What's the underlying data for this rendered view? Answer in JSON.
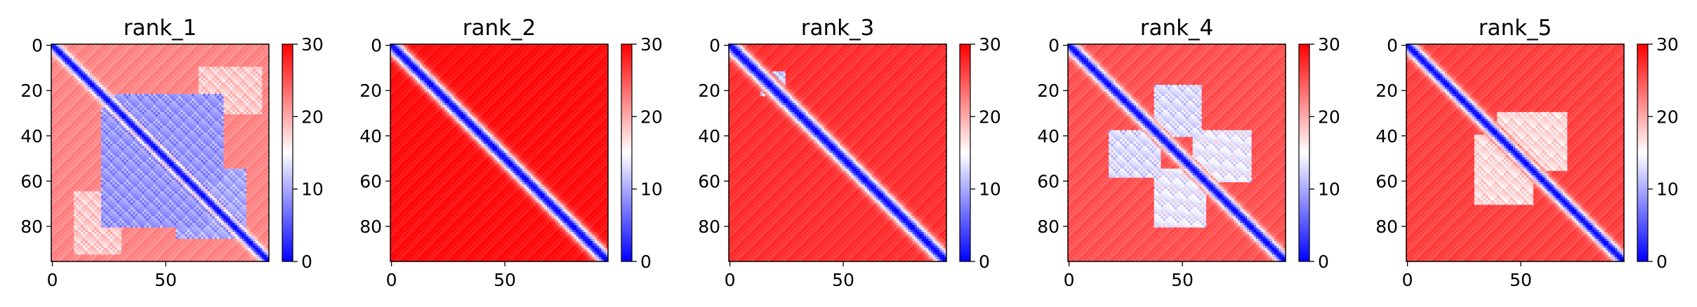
{
  "chart_data": [
    {
      "type": "heatmap",
      "title": "rank_1",
      "xticks": [
        "0",
        "50"
      ],
      "yticks": [
        "0",
        "20",
        "40",
        "60",
        "80"
      ],
      "colorbar_ticks": [
        "0",
        "10",
        "20",
        "30"
      ],
      "n": 96,
      "vmin": 0,
      "vmax": 30,
      "colormap": {
        "low": "#0000ff",
        "mid": "#ffffff",
        "high": "#ff0000"
      },
      "pattern": {
        "diagonal_width": 2.2,
        "far_level": 22,
        "off_diagonal_blocks": [
          {
            "rows": [
              22,
              60
            ],
            "cols": [
              28,
              75
            ],
            "value": 9
          },
          {
            "rows": [
              28,
              80
            ],
            "cols": [
              22,
              68
            ],
            "value": 9
          },
          {
            "rows": [
              55,
              80
            ],
            "cols": [
              60,
              85
            ],
            "value": 10
          },
          {
            "rows": [
              60,
              85
            ],
            "cols": [
              55,
              80
            ],
            "value": 10
          },
          {
            "rows": [
              10,
              30
            ],
            "cols": [
              65,
              92
            ],
            "value": 18
          },
          {
            "rows": [
              65,
              92
            ],
            "cols": [
              10,
              30
            ],
            "value": 18
          }
        ]
      }
    },
    {
      "type": "heatmap",
      "title": "rank_2",
      "xticks": [
        "0",
        "50"
      ],
      "yticks": [
        "0",
        "20",
        "40",
        "60",
        "80"
      ],
      "colorbar_ticks": [
        "0",
        "10",
        "20",
        "30"
      ],
      "n": 96,
      "vmin": 0,
      "vmax": 30,
      "colormap": {
        "low": "#0000ff",
        "mid": "#ffffff",
        "high": "#ff0000"
      },
      "pattern": {
        "diagonal_width": 3.0,
        "far_level": 29,
        "off_diagonal_blocks": []
      }
    },
    {
      "type": "heatmap",
      "title": "rank_3",
      "xticks": [
        "0",
        "50"
      ],
      "yticks": [
        "0",
        "20",
        "40",
        "60",
        "80"
      ],
      "colorbar_ticks": [
        "0",
        "10",
        "20",
        "30"
      ],
      "n": 96,
      "vmin": 0,
      "vmax": 30,
      "colormap": {
        "low": "#0000ff",
        "mid": "#ffffff",
        "high": "#ff0000"
      },
      "pattern": {
        "diagonal_width": 3.0,
        "far_level": 27,
        "off_diagonal_blocks": [
          {
            "rows": [
              12,
              22
            ],
            "cols": [
              14,
              24
            ],
            "value": 12
          }
        ]
      }
    },
    {
      "type": "heatmap",
      "title": "rank_4",
      "xticks": [
        "0",
        "50"
      ],
      "yticks": [
        "0",
        "20",
        "40",
        "60",
        "80"
      ],
      "colorbar_ticks": [
        "0",
        "10",
        "20",
        "30"
      ],
      "n": 96,
      "vmin": 0,
      "vmax": 30,
      "colormap": {
        "low": "#0000ff",
        "mid": "#ffffff",
        "high": "#ff0000"
      },
      "pattern": {
        "diagonal_width": 2.6,
        "far_level": 25,
        "off_diagonal_blocks": [
          {
            "rows": [
              38,
              58
            ],
            "cols": [
              18,
              40
            ],
            "value": 13
          },
          {
            "rows": [
              18,
              40
            ],
            "cols": [
              38,
              58
            ],
            "value": 13
          },
          {
            "rows": [
              55,
              80
            ],
            "cols": [
              38,
              60
            ],
            "value": 14
          },
          {
            "rows": [
              38,
              60
            ],
            "cols": [
              55,
              80
            ],
            "value": 14
          }
        ]
      }
    },
    {
      "type": "heatmap",
      "title": "rank_5",
      "xticks": [
        "0",
        "50"
      ],
      "yticks": [
        "0",
        "20",
        "40",
        "60",
        "80"
      ],
      "colorbar_ticks": [
        "0",
        "10",
        "20",
        "30"
      ],
      "n": 96,
      "vmin": 0,
      "vmax": 30,
      "colormap": {
        "low": "#0000ff",
        "mid": "#ffffff",
        "high": "#ff0000"
      },
      "pattern": {
        "diagonal_width": 2.6,
        "far_level": 26,
        "off_diagonal_blocks": [
          {
            "rows": [
              30,
              55
            ],
            "cols": [
              40,
              70
            ],
            "value": 17
          },
          {
            "rows": [
              40,
              70
            ],
            "cols": [
              30,
              55
            ],
            "value": 17
          }
        ]
      }
    }
  ]
}
